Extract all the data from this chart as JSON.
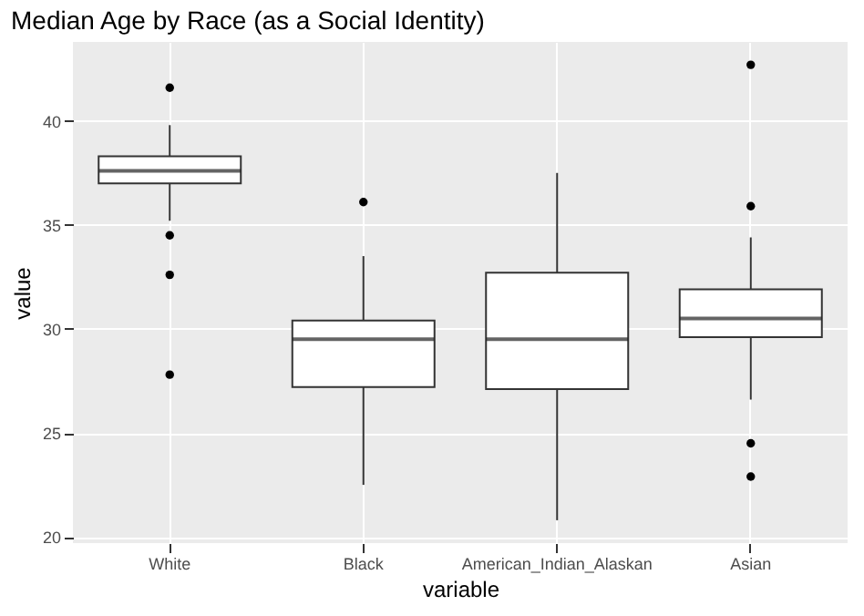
{
  "chart_data": {
    "type": "box",
    "title": "Median Age by Race (as a Social Identity)",
    "xlabel": "variable",
    "ylabel": "value",
    "categories": [
      "White",
      "Black",
      "American_Indian_Alaskan",
      "Asian"
    ],
    "boxes": [
      {
        "low": 35.2,
        "q1": 37.0,
        "median": 37.6,
        "q3": 38.3,
        "high": 39.8,
        "outliers": [
          41.6,
          34.5,
          32.6,
          27.8
        ]
      },
      {
        "low": 22.5,
        "q1": 27.2,
        "median": 29.5,
        "q3": 30.4,
        "high": 33.5,
        "outliers": [
          36.1
        ]
      },
      {
        "low": 20.8,
        "q1": 27.1,
        "median": 29.5,
        "q3": 32.7,
        "high": 37.5
      },
      {
        "low": 26.6,
        "q1": 29.6,
        "median": 30.5,
        "q3": 31.9,
        "high": 34.4,
        "outliers": [
          42.7,
          35.9,
          24.5,
          22.9
        ]
      }
    ],
    "ylim": [
      19.7,
      43.8
    ],
    "yticks": [
      20,
      25,
      30,
      35,
      40
    ],
    "grid": true
  }
}
